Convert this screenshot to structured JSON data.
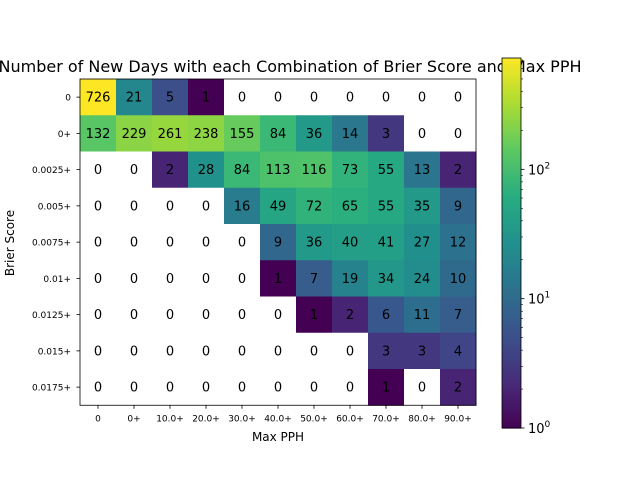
{
  "chart_data": {
    "type": "heatmap",
    "title": "Number of New Days with each Combination of Brier Score and Max PPH",
    "xlabel": "Max PPH",
    "ylabel": "Brier Score",
    "x_categories": [
      "0",
      "0+",
      "10.0+",
      "20.0+",
      "30.0+",
      "40.0+",
      "50.0+",
      "60.0+",
      "70.0+",
      "80.0+",
      "90.0+"
    ],
    "y_categories": [
      "0",
      "0+",
      "0.0025+",
      "0.005+",
      "0.0075+",
      "0.01+",
      "0.0125+",
      "0.015+",
      "0.0175+"
    ],
    "values": [
      [
        726,
        21,
        5,
        1,
        0,
        0,
        0,
        0,
        0,
        0,
        0
      ],
      [
        132,
        229,
        261,
        238,
        155,
        84,
        36,
        14,
        3,
        0,
        0
      ],
      [
        0,
        0,
        2,
        28,
        84,
        113,
        116,
        73,
        55,
        13,
        2
      ],
      [
        0,
        0,
        0,
        0,
        16,
        49,
        72,
        65,
        55,
        35,
        9
      ],
      [
        0,
        0,
        0,
        0,
        0,
        9,
        36,
        40,
        41,
        27,
        12
      ],
      [
        0,
        0,
        0,
        0,
        0,
        1,
        7,
        19,
        34,
        24,
        10
      ],
      [
        0,
        0,
        0,
        0,
        0,
        0,
        1,
        2,
        6,
        11,
        7
      ],
      [
        0,
        0,
        0,
        0,
        0,
        0,
        0,
        0,
        3,
        3,
        4
      ],
      [
        0,
        0,
        0,
        0,
        0,
        0,
        0,
        0,
        1,
        0,
        2
      ]
    ],
    "colorscale": "viridis",
    "color_scale_type": "log",
    "color_range": [
      1,
      726
    ],
    "zero_color": "#ffffff",
    "colorbar": {
      "major_ticks": [
        {
          "value": 1,
          "base": "10",
          "exp": "0"
        },
        {
          "value": 10,
          "base": "10",
          "exp": "1"
        },
        {
          "value": 100,
          "base": "10",
          "exp": "2"
        }
      ]
    }
  }
}
